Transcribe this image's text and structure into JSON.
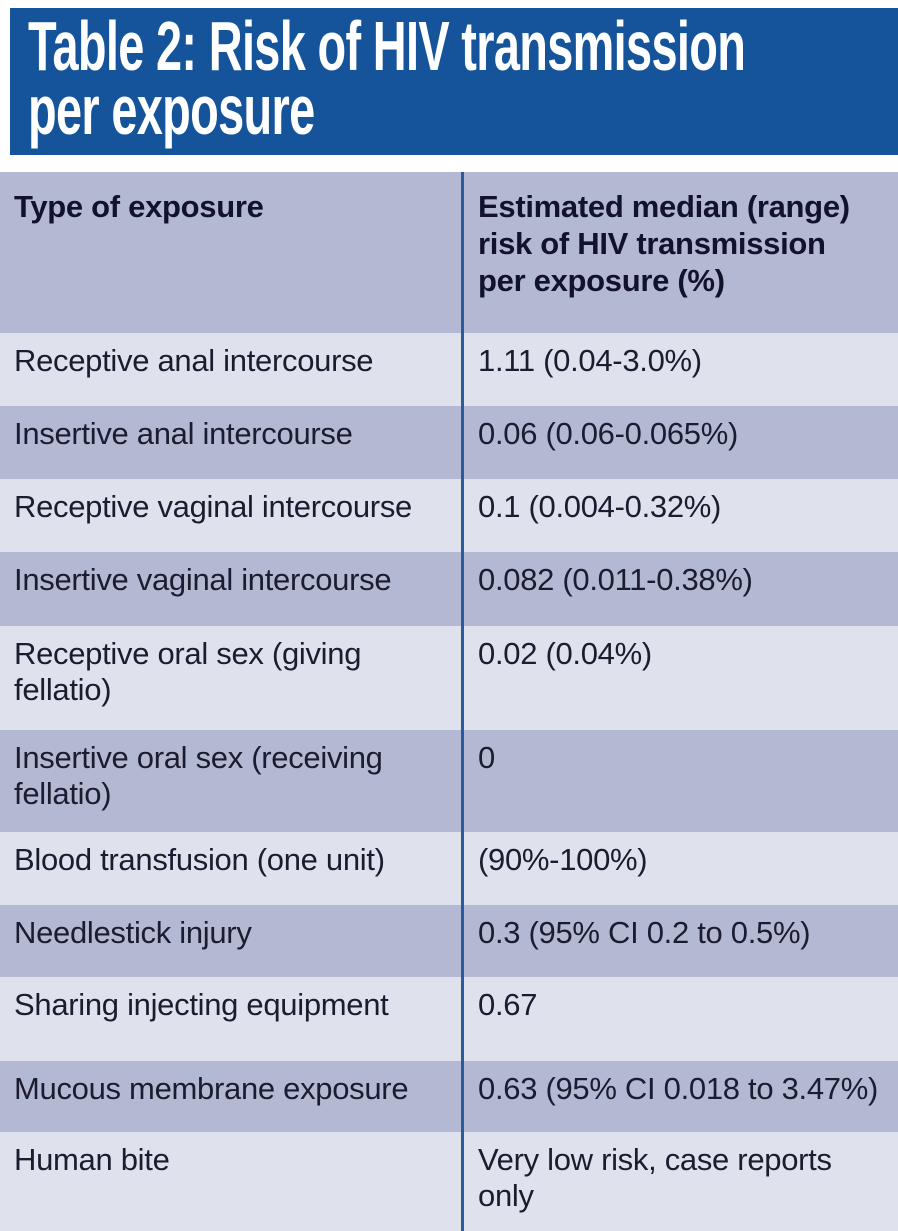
{
  "title": {
    "full": "Table 2: Risk of HIV transmission per exposure",
    "line1": "Table 2: Risk of HIV transmission",
    "line2": "per exposure"
  },
  "table": {
    "header": {
      "col1": "Type of exposure",
      "col2_lines": {
        "0": "Estimated median (range)",
        "1": "risk of HIV transmission",
        "2": "per exposure (%)"
      }
    },
    "rows": [
      {
        "exposure": "Receptive anal intercourse",
        "risk": "1.11 (0.04-3.0%)"
      },
      {
        "exposure": "Insertive anal intercourse",
        "risk": "0.06 (0.06-0.065%)"
      },
      {
        "exposure": "Receptive vaginal intercourse",
        "risk": "0.1 (0.004-0.32%)"
      },
      {
        "exposure": "Insertive vaginal intercourse",
        "risk": "0.082 (0.011-0.38%)"
      },
      {
        "exposure": "Receptive oral sex (giving fellatio)",
        "risk": "0.02 (0.04%)"
      },
      {
        "exposure": "Insertive oral sex (receiving fellatio)",
        "risk": "0"
      },
      {
        "exposure": "Blood transfusion (one unit)",
        "risk": "(90%-100%)"
      },
      {
        "exposure": "Needlestick injury",
        "risk": "0.3 (95% CI 0.2 to 0.5%)"
      },
      {
        "exposure": "Sharing injecting equipment",
        "risk": "0.67"
      },
      {
        "exposure": "Mucous membrane exposure",
        "risk": "0.63 (95% CI 0.018 to 3.47%)"
      },
      {
        "exposure": "Human bite",
        "risk": "Very low risk, case reports only"
      }
    ]
  },
  "chart_data": {
    "type": "table",
    "title": "Table 2: Risk of HIV transmission per exposure",
    "columns": [
      "Type of exposure",
      "Estimated median (range) risk of HIV transmission per exposure (%)"
    ],
    "rows": [
      [
        "Receptive anal intercourse",
        "1.11 (0.04-3.0%)"
      ],
      [
        "Insertive anal intercourse",
        "0.06 (0.06-0.065%)"
      ],
      [
        "Receptive vaginal intercourse",
        "0.1 (0.004-0.32%)"
      ],
      [
        "Insertive vaginal intercourse",
        "0.082 (0.011-0.38%)"
      ],
      [
        "Receptive oral sex (giving fellatio)",
        "0.02 (0.04%)"
      ],
      [
        "Insertive oral sex (receiving fellatio)",
        "0"
      ],
      [
        "Blood transfusion (one unit)",
        "(90%-100%)"
      ],
      [
        "Needlestick injury",
        "0.3 (95% CI 0.2 to 0.5%)"
      ],
      [
        "Sharing injecting equipment",
        "0.67"
      ],
      [
        "Mucous membrane exposure",
        "0.63 (95% CI 0.018 to 3.47%)"
      ],
      [
        "Human bite",
        "Very low risk, case reports only"
      ]
    ]
  },
  "colors": {
    "title_bg": "#15549a",
    "header_bg": "#b4b9d3",
    "row_dark": "#b4b9d3",
    "row_light": "#dfe1ec",
    "divider": "#2a5b9d",
    "title_text": "#ffffff",
    "text": "#1c1c30"
  }
}
